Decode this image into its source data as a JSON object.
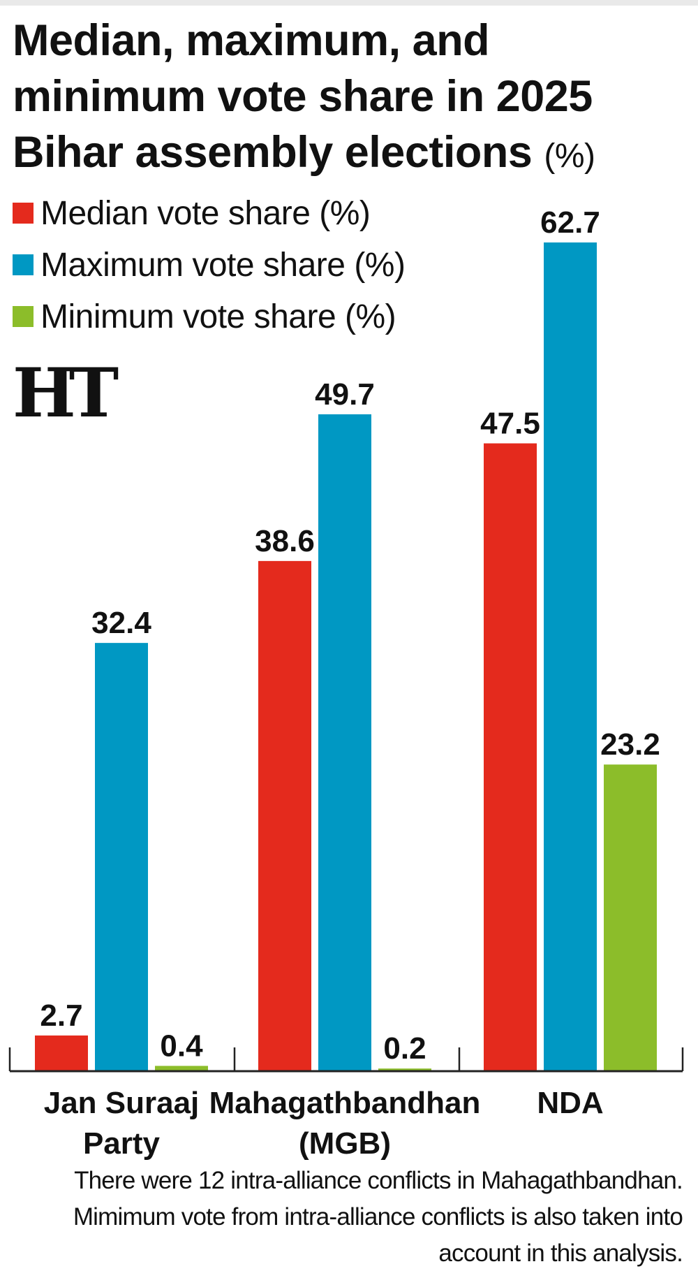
{
  "title": "Median, maximum, and minimum vote share in 2025 Bihar assembly elections",
  "title_unit": "(%)",
  "logo_text": "HT",
  "footnote_lines": [
    "There were 12 intra-alliance conflicts in Mahagathbandhan.",
    "Mimimum vote from intra-alliance conflicts is also taken into",
    "account in this analysis."
  ],
  "chart_data": {
    "type": "bar",
    "categories": [
      [
        "Jan Suraaj",
        "Party"
      ],
      [
        "Mahagathbandhan",
        "(MGB)"
      ],
      [
        "NDA"
      ]
    ],
    "series": [
      {
        "name": "Median vote share (%)",
        "color": "#e42a1d",
        "values": [
          2.7,
          38.6,
          47.5
        ],
        "labels": [
          "2.7",
          "38.6",
          "47.5"
        ]
      },
      {
        "name": "Maximum vote share (%)",
        "color": "#0098c3",
        "values": [
          32.4,
          49.7,
          62.7
        ],
        "labels": [
          "32.4",
          "49.7",
          "62.7"
        ]
      },
      {
        "name": "Minimum vote share (%)",
        "color": "#8cbd2a",
        "values": [
          0.4,
          0.2,
          23.2
        ],
        "labels": [
          "0.4",
          "0.2",
          "23.2"
        ]
      }
    ],
    "ylim": [
      0,
      62.7
    ],
    "grid": false,
    "legend": "top-left"
  }
}
